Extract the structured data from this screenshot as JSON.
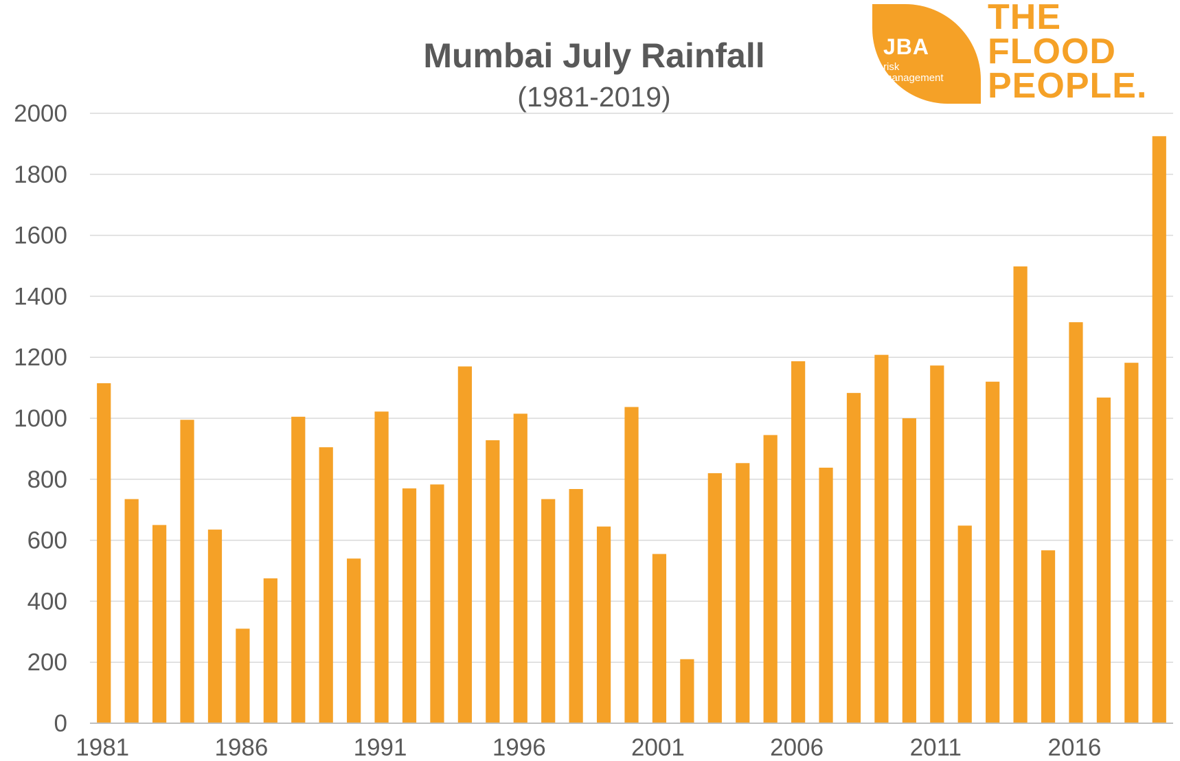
{
  "colors": {
    "bar": "#f5a127",
    "text": "#595959",
    "grid": "#d9d9d9",
    "logo": "#f5a127"
  },
  "logo": {
    "badge": "JBA",
    "badge_sub_1": "risk",
    "badge_sub_2": "management",
    "line_1": "THE",
    "line_2": "FLOOD",
    "line_3": "PEOPLE."
  },
  "chart_data": {
    "type": "bar",
    "title": "Mumbai July Rainfall",
    "subtitle": "(1981-2019)",
    "xlabel": "",
    "ylabel": "",
    "ylim": [
      0,
      2000
    ],
    "yticks": [
      0,
      200,
      400,
      600,
      800,
      1000,
      1200,
      1400,
      1600,
      1800,
      2000
    ],
    "grid": true,
    "legend": "none",
    "categories": [
      1981,
      1982,
      1983,
      1984,
      1985,
      1986,
      1987,
      1988,
      1989,
      1990,
      1991,
      1992,
      1993,
      1994,
      1995,
      1996,
      1997,
      1998,
      1999,
      2000,
      2001,
      2002,
      2003,
      2004,
      2005,
      2006,
      2007,
      2008,
      2009,
      2010,
      2011,
      2012,
      2013,
      2014,
      2015,
      2016,
      2017,
      2018,
      2019
    ],
    "xtick_labels": [
      "1981",
      "1986",
      "1991",
      "1996",
      "2001",
      "2006",
      "2011",
      "2016"
    ],
    "values": [
      1115,
      735,
      650,
      995,
      635,
      310,
      475,
      1005,
      905,
      540,
      1022,
      770,
      783,
      1170,
      928,
      1015,
      735,
      768,
      645,
      1037,
      555,
      210,
      820,
      853,
      945,
      1187,
      838,
      1083,
      1208,
      1000,
      1173,
      648,
      1120,
      1498,
      567,
      1315,
      1068,
      1182,
      1925
    ]
  }
}
